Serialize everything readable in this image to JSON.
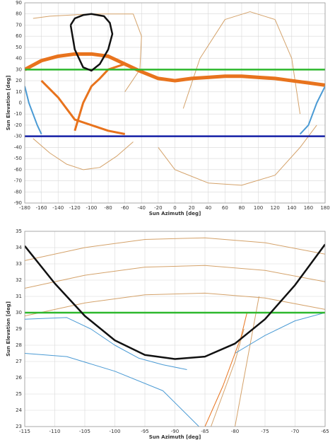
{
  "charts": [
    {
      "chart_data": {
        "type": "line",
        "x_label": "Sun Azimuth [deg]",
        "y_label": "Sun Elevation [deg]",
        "xlim": [
          -180,
          180
        ],
        "ylim": [
          -90,
          90
        ],
        "xticks": [
          -180,
          -160,
          -140,
          -120,
          -100,
          -80,
          -60,
          -40,
          -20,
          0,
          20,
          40,
          60,
          80,
          100,
          120,
          140,
          160,
          180
        ],
        "yticks": [
          -90,
          -80,
          -70,
          -60,
          -50,
          -40,
          -30,
          -20,
          -10,
          0,
          10,
          20,
          30,
          40,
          50,
          60,
          70,
          80,
          90
        ],
        "grid": true,
        "series": [
          {
            "color": "#d4a26a",
            "line_width": 1,
            "x": [
              -170,
              -150,
              -100,
              -50,
              -40,
              -42,
              -60
            ],
            "values": [
              76,
              78,
              80,
              80,
              60,
              30,
              10
            ]
          },
          {
            "color": "#d4a26a",
            "line_width": 1,
            "x": [
              -170,
              -150,
              -130,
              -110,
              -90,
              -70,
              -50
            ],
            "values": [
              -32,
              -45,
              -55,
              -60,
              -58,
              -48,
              -35
            ]
          },
          {
            "color": "#d4a26a",
            "line_width": 1,
            "x": [
              10,
              30,
              60,
              90,
              120,
              140,
              150
            ],
            "values": [
              -5,
              40,
              75,
              82,
              75,
              40,
              -10
            ]
          },
          {
            "color": "#d4a26a",
            "line_width": 1,
            "x": [
              -20,
              0,
              40,
              80,
              120,
              150,
              170
            ],
            "values": [
              -40,
              -60,
              -72,
              -74,
              -65,
              -40,
              -20
            ]
          },
          {
            "color": "#e8731d",
            "line_width": 5,
            "x": [
              -180,
              -160,
              -140,
              -120,
              -100,
              -80,
              -60,
              -40,
              -20,
              0,
              20,
              40,
              60,
              80,
              100,
              120,
              140,
              160,
              180
            ],
            "values": [
              30,
              38,
              42,
              44,
              44,
              42,
              35,
              28,
              22,
              20,
              22,
              23,
              24,
              24,
              23,
              22,
              20,
              18,
              16
            ]
          },
          {
            "color": "#e8731d",
            "line_width": 3,
            "x": [
              -160,
              -140,
              -120,
              -100,
              -80,
              -60
            ],
            "values": [
              20,
              5,
              -15,
              -20,
              -25,
              -28
            ]
          },
          {
            "color": "#e8731d",
            "line_width": 3,
            "x": [
              -120,
              -110,
              -100,
              -90,
              -80,
              -60
            ],
            "values": [
              -25,
              0,
              15,
              22,
              30,
              35
            ]
          },
          {
            "color": "#4a9ad4",
            "line_width": 2,
            "x": [
              -180,
              -175,
              -170,
              -165,
              -160
            ],
            "values": [
              15,
              0,
              -10,
              -20,
              -28
            ]
          },
          {
            "color": "#4a9ad4",
            "line_width": 2,
            "x": [
              150,
              160,
              170,
              180
            ],
            "values": [
              -28,
              -20,
              0,
              15
            ]
          },
          {
            "color": "#2db82d",
            "line_width": 2.5,
            "x": [
              -180,
              180
            ],
            "values": [
              30,
              30
            ]
          },
          {
            "color": "#1520a6",
            "line_width": 2.5,
            "x": [
              -180,
              180
            ],
            "values": [
              -30,
              -30
            ]
          },
          {
            "color": "#111111",
            "line_width": 2.5,
            "x": [
              -125,
              -120,
              -110,
              -100,
              -85,
              -78,
              -75,
              -80,
              -90,
              -100,
              -110,
              -120,
              -125
            ],
            "values": [
              70,
              76,
              79,
              80,
              78,
              72,
              62,
              48,
              35,
              29,
              32,
              48,
              70
            ]
          }
        ]
      }
    },
    {
      "chart_data": {
        "type": "line",
        "x_label": "Sun Azimuth [deg]",
        "y_label": "Sun Elevation [deg]",
        "xlim": [
          -115,
          -65
        ],
        "ylim": [
          23,
          35
        ],
        "xticks": [
          -115,
          -110,
          -105,
          -100,
          -95,
          -90,
          -85,
          -80,
          -75,
          -70,
          -65
        ],
        "yticks": [
          23,
          24,
          25,
          26,
          27,
          28,
          29,
          30,
          31,
          32,
          33,
          34,
          35
        ],
        "grid": true,
        "series": [
          {
            "color": "#d4a26a",
            "line_width": 1,
            "x": [
              -115,
              -105,
              -95,
              -85,
              -75,
              -65
            ],
            "values": [
              33.2,
              34.0,
              34.5,
              34.6,
              34.3,
              33.6
            ]
          },
          {
            "color": "#d4a26a",
            "line_width": 1,
            "x": [
              -115,
              -105,
              -95,
              -85,
              -75,
              -65
            ],
            "values": [
              31.5,
              32.3,
              32.8,
              32.9,
              32.6,
              31.9
            ]
          },
          {
            "color": "#d4a26a",
            "line_width": 1,
            "x": [
              -115,
              -105,
              -95,
              -85,
              -75,
              -65
            ],
            "values": [
              29.8,
              30.6,
              31.1,
              31.2,
              30.9,
              30.2
            ]
          },
          {
            "color": "#d4a26a",
            "line_width": 1,
            "x": [
              -80,
              -79,
              -78,
              -77,
              -76
            ],
            "values": [
              23,
              25,
              27,
              29,
              31
            ]
          },
          {
            "color": "#d4a26a",
            "line_width": 1,
            "x": [
              -84,
              -82,
              -80,
              -78.5
            ],
            "values": [
              23,
              25,
              27,
              29
            ]
          },
          {
            "color": "#4a9ad4",
            "line_width": 1,
            "x": [
              -115,
              -108,
              -104,
              -100,
              -96,
              -92,
              -88
            ],
            "values": [
              29.6,
              29.7,
              29.0,
              28.0,
              27.2,
              26.8,
              26.5
            ]
          },
          {
            "color": "#4a9ad4",
            "line_width": 1,
            "x": [
              -115,
              -108,
              -100,
              -92,
              -86
            ],
            "values": [
              27.5,
              27.3,
              26.4,
              25.2,
              23
            ]
          },
          {
            "color": "#4a9ad4",
            "line_width": 1,
            "x": [
              -80,
              -75,
              -70,
              -65
            ],
            "values": [
              27.5,
              28.6,
              29.5,
              30.0
            ]
          },
          {
            "color": "#e8731d",
            "line_width": 1,
            "x": [
              -85,
              -82,
              -79,
              -78
            ],
            "values": [
              23,
              25.5,
              28.5,
              30
            ]
          },
          {
            "color": "#2db82d",
            "line_width": 2.5,
            "x": [
              -115,
              -65
            ],
            "values": [
              30,
              30
            ]
          },
          {
            "color": "#111111",
            "line_width": 2.5,
            "x": [
              -115,
              -110,
              -105,
              -100,
              -95,
              -90,
              -85,
              -80,
              -75,
              -70,
              -65
            ],
            "values": [
              34.1,
              31.8,
              29.8,
              28.3,
              27.4,
              27.15,
              27.3,
              28.1,
              29.6,
              31.7,
              34.2
            ]
          }
        ]
      }
    }
  ]
}
